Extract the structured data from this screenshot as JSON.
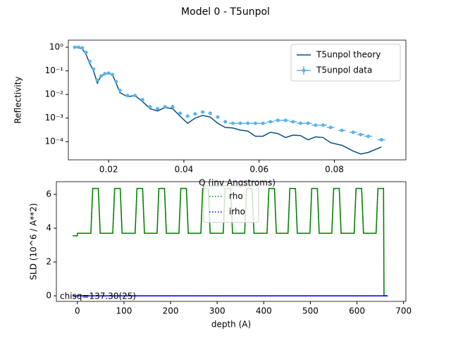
{
  "title": "Model 0 - T5unpol",
  "chart_data": [
    {
      "type": "line",
      "xlabel": "Q (inv Angstroms)",
      "ylabel": "Reflectivity",
      "log_y": true,
      "xlim": [
        0.0093,
        0.099
      ],
      "ylim": [
        1.7e-05,
        2
      ],
      "xticks": [
        0.02,
        0.04,
        0.06,
        0.08
      ],
      "yticks": [
        {
          "value": 1,
          "label": "10⁰"
        },
        {
          "value": 0.1,
          "label": "10⁻¹"
        },
        {
          "value": 0.01,
          "label": "10⁻²"
        },
        {
          "value": 0.001,
          "label": "10⁻³"
        },
        {
          "value": 0.0001,
          "label": "10⁻⁴"
        }
      ],
      "legend": "upper right",
      "x": [
        0.011,
        0.012,
        0.013,
        0.014,
        0.015,
        0.016,
        0.017,
        0.018,
        0.019,
        0.02,
        0.021,
        0.022,
        0.023,
        0.025,
        0.027,
        0.029,
        0.031,
        0.033,
        0.035,
        0.037,
        0.039,
        0.041,
        0.043,
        0.045,
        0.047,
        0.049,
        0.051,
        0.053,
        0.055,
        0.057,
        0.059,
        0.061,
        0.063,
        0.065,
        0.067,
        0.069,
        0.071,
        0.073,
        0.075,
        0.077,
        0.079,
        0.082,
        0.085,
        0.087,
        0.089,
        0.0925
      ],
      "series": [
        {
          "name": "T5unpol theory",
          "color": "#0b4f7c",
          "style": "solid",
          "values": [
            1,
            0.98,
            0.85,
            0.5,
            0.2,
            0.1,
            0.03,
            0.06,
            0.075,
            0.08,
            0.07,
            0.03,
            0.012,
            0.008,
            0.009,
            0.005,
            0.0025,
            0.002,
            0.0028,
            0.0025,
            0.0012,
            0.0006,
            0.001,
            0.0013,
            0.0011,
            0.0006,
            0.0004,
            0.00038,
            0.00031,
            0.00028,
            0.00017,
            0.00017,
            0.00025,
            0.00022,
            0.00015,
            0.00019,
            0.00018,
            0.00012,
            0.00016,
            0.00015,
            9e-05,
            7e-05,
            4e-05,
            3e-05,
            3.5e-05,
            6e-05
          ]
        },
        {
          "name": "T5unpol data",
          "color": "#5ab4ee",
          "style": "errorbar",
          "values": [
            1,
            1,
            0.95,
            0.6,
            0.25,
            0.12,
            0.04,
            0.06,
            0.075,
            0.08,
            0.07,
            0.035,
            0.015,
            0.009,
            0.009,
            0.006,
            0.003,
            0.0025,
            0.003,
            0.003,
            0.0016,
            0.0012,
            0.0015,
            0.0018,
            0.0016,
            0.0011,
            0.0007,
            0.0006,
            0.0006,
            0.0006,
            0.0006,
            0.0006,
            0.0007,
            0.0008,
            0.0008,
            0.0007,
            0.0006,
            0.0006,
            0.0005,
            0.0005,
            0.0004,
            0.0003,
            0.00025,
            0.0002,
            0.00017,
            0.00012
          ],
          "xerr": [
            0.0003,
            0.0003,
            0.0003,
            0.0003,
            0.0003,
            0.0003,
            0.0003,
            0.0003,
            0.0003,
            0.0003,
            0.0003,
            0.0003,
            0.0003,
            0.0005,
            0.0005,
            0.0005,
            0.0005,
            0.0005,
            0.0005,
            0.0005,
            0.0005,
            0.0005,
            0.0005,
            0.0005,
            0.0005,
            0.0005,
            0.0005,
            0.001,
            0.001,
            0.001,
            0.001,
            0.001,
            0.001,
            0.001,
            0.001,
            0.001,
            0.001,
            0.001,
            0.001,
            0.001,
            0.001,
            0.001,
            0.001,
            0.001,
            0.001,
            0.001
          ]
        }
      ]
    },
    {
      "type": "line",
      "xlabel": "depth (A)",
      "ylabel": "SLD (10^6 / A**2)",
      "log_y": false,
      "xlim": [
        -45,
        705
      ],
      "ylim": [
        -0.33,
        6.75
      ],
      "xticks": [
        0,
        100,
        200,
        300,
        400,
        500,
        600,
        700
      ],
      "yticks": [
        0,
        2,
        4,
        6
      ],
      "legend": "upper center",
      "annotation": "chisq=137.30(25)",
      "series": [
        {
          "name": "rho",
          "color": "#008000",
          "style": "dotted",
          "x": [
            -10,
            0,
            0,
            29,
            33,
            45,
            49,
            76,
            80,
            92,
            96,
            124,
            128,
            140,
            144,
            171,
            175,
            187,
            191,
            218,
            222,
            234,
            238,
            265,
            269,
            281,
            285,
            313,
            317,
            329,
            333,
            359,
            363,
            375,
            379,
            407,
            411,
            423,
            427,
            452,
            456,
            468,
            472,
            499,
            503,
            515,
            519,
            546,
            550,
            562,
            566,
            594,
            598,
            610,
            614,
            641,
            645,
            657,
            658,
            666
          ],
          "values": [
            3.55,
            3.55,
            3.7,
            3.7,
            6.35,
            6.35,
            3.7,
            3.7,
            6.35,
            6.35,
            3.7,
            3.7,
            6.35,
            6.35,
            3.7,
            3.7,
            6.35,
            6.35,
            3.7,
            3.7,
            6.35,
            6.35,
            3.7,
            3.7,
            6.35,
            6.35,
            3.7,
            3.7,
            6.35,
            6.35,
            3.7,
            3.7,
            6.35,
            6.35,
            3.7,
            3.7,
            6.35,
            6.35,
            3.7,
            3.7,
            6.35,
            6.35,
            3.7,
            3.7,
            6.35,
            6.35,
            3.7,
            3.7,
            6.35,
            6.35,
            3.7,
            3.7,
            6.35,
            6.35,
            3.7,
            3.7,
            6.35,
            6.35,
            0,
            0
          ]
        },
        {
          "name": "irho",
          "color": "#0000ff",
          "style": "dotted",
          "x": [
            -10,
            666
          ],
          "values": [
            0,
            0
          ]
        }
      ]
    }
  ]
}
